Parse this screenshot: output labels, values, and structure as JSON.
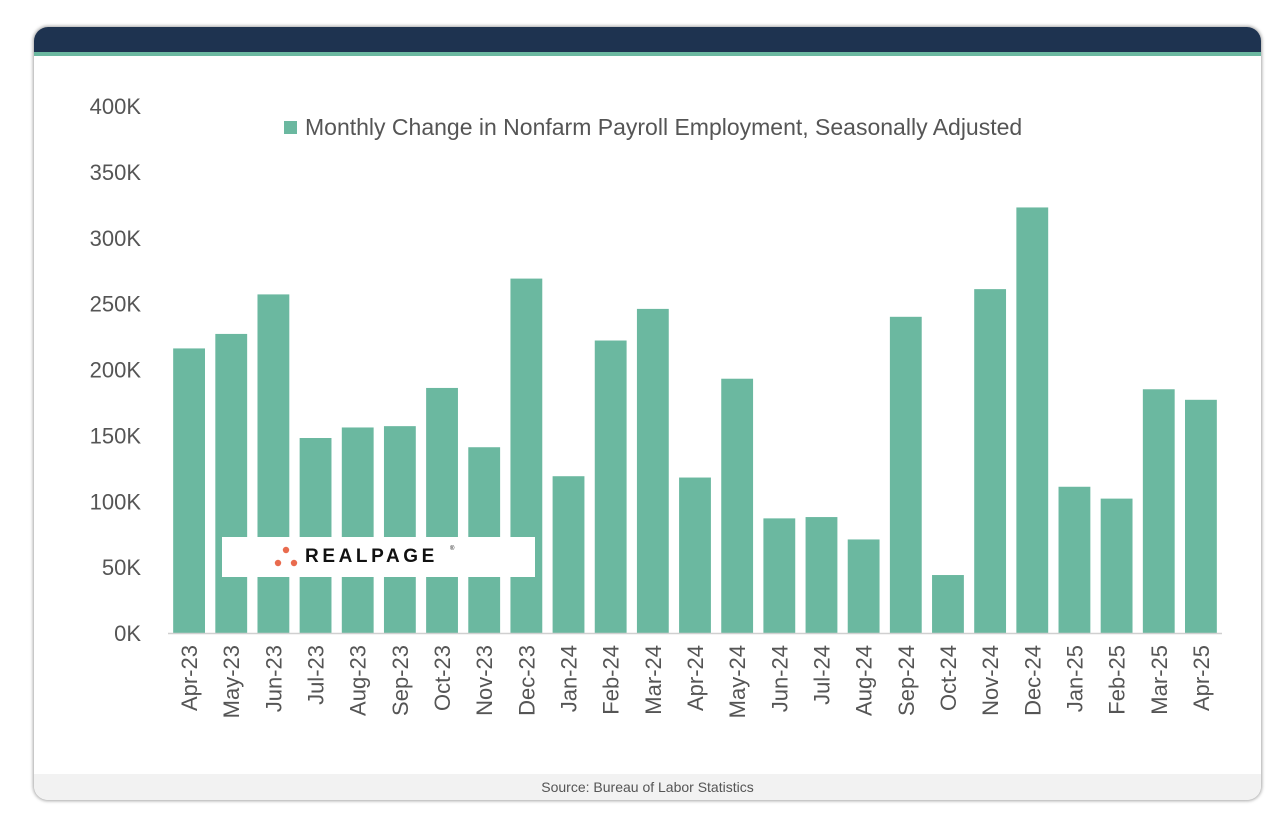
{
  "chart_data": {
    "type": "bar",
    "legend": "Monthly Change in Nonfarm Payroll Employment, Seasonally Adjusted",
    "legend_placement": "top-center",
    "categories": [
      "Apr-23",
      "May-23",
      "Jun-23",
      "Jul-23",
      "Aug-23",
      "Sep-23",
      "Oct-23",
      "Nov-23",
      "Dec-23",
      "Jan-24",
      "Feb-24",
      "Mar-24",
      "Apr-24",
      "May-24",
      "Jun-24",
      "Jul-24",
      "Aug-24",
      "Sep-24",
      "Oct-24",
      "Nov-24",
      "Dec-24",
      "Jan-25",
      "Feb-25",
      "Mar-25",
      "Apr-25"
    ],
    "series": [
      {
        "name": "Monthly Change in Nonfarm Payroll Employment, Seasonally Adjusted",
        "values": [
          216,
          227,
          257,
          148,
          156,
          157,
          186,
          141,
          269,
          119,
          222,
          246,
          118,
          193,
          87,
          88,
          71,
          240,
          44,
          261,
          323,
          111,
          102,
          185,
          177
        ]
      }
    ],
    "y_ticks": [
      "0K",
      "50K",
      "100K",
      "150K",
      "200K",
      "250K",
      "300K",
      "350K",
      "400K"
    ],
    "y_tick_values": [
      0,
      50,
      100,
      150,
      200,
      250,
      300,
      350,
      400
    ],
    "ylim": [
      0,
      400
    ],
    "grid": false,
    "bar_color": "#6bb8a0"
  },
  "footer": {
    "source": "Source: Bureau of Labor Statistics"
  },
  "logo": {
    "text": "REALPAGE",
    "reg": "®"
  },
  "colors": {
    "header": "#1e3350",
    "accent": "#6bb8a0",
    "bar": "#6bb8a0"
  }
}
